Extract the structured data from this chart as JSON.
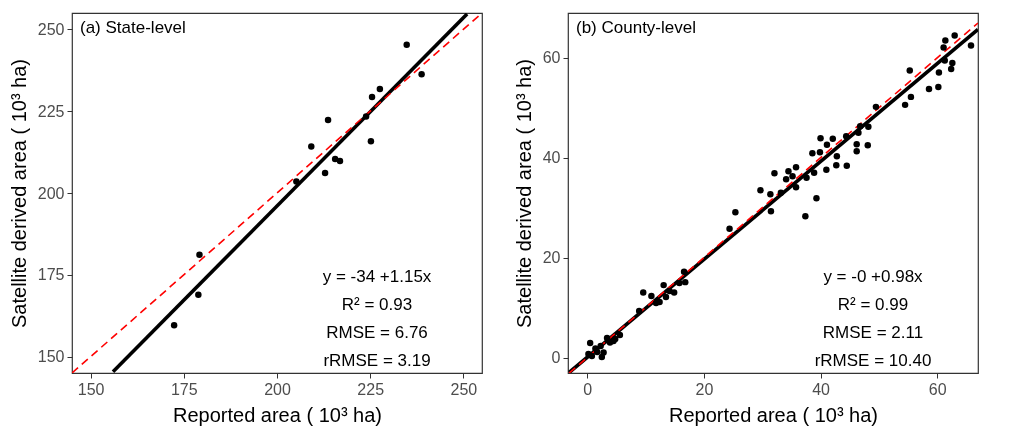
{
  "chart_data": [
    {
      "type": "scatter",
      "title": "(a) State-level",
      "xlabel": "Reported area ( 10³ ha)",
      "ylabel": "Satellite derived area ( 10³ ha)",
      "xlim": [
        145,
        255
      ],
      "ylim": [
        145,
        255
      ],
      "xticks": [
        150,
        175,
        200,
        225,
        250
      ],
      "yticks": [
        150,
        175,
        200,
        225,
        250
      ],
      "grid": false,
      "annotations": [
        "y = -34 +1.15x",
        "R² = 0.93",
        "RMSE = 6.76",
        "rRMSE = 3.19"
      ],
      "series": [
        {
          "marker": "circle",
          "color": "#000000",
          "x": [
            234.8,
            238.8,
            227.6,
            225.5,
            223.9,
            213.7,
            209.2,
            225.2,
            215.6,
            216.9,
            212.9,
            205.2,
            179.2,
            178.9,
            172.4
          ],
          "values": [
            245.3,
            236.3,
            231.8,
            229.3,
            223.4,
            222.3,
            214.2,
            215.8,
            210.4,
            209.8,
            206.1,
            203.5,
            181.1,
            168.9,
            159.6
          ]
        },
        {
          "type": "line",
          "color": "#000000",
          "line_style": "solid",
          "x": [
            156,
            251
          ],
          "values": [
            145.4,
            254.7
          ]
        },
        {
          "type": "line",
          "color": "#ff0000",
          "line_style": "dashed",
          "x": [
            145,
            255
          ],
          "values": [
            145,
            255
          ]
        }
      ]
    },
    {
      "type": "scatter",
      "title": "(b) County-level",
      "xlabel": "Reported area ( 10³ ha)",
      "ylabel": "Satellite derived area ( 10³ ha)",
      "xlim": [
        -3.3,
        67
      ],
      "ylim": [
        -3.1,
        69
      ],
      "xticks": [
        0,
        20,
        40,
        60
      ],
      "yticks": [
        0,
        20,
        40,
        60
      ],
      "grid": false,
      "annotations": [
        "y = -0 +0.98x",
        "R² = 0.99",
        "RMSE = 2.11",
        "rRMSE = 10.40"
      ],
      "series": [
        {
          "marker": "circle",
          "color": "#000000",
          "x": [
            61.4,
            63.0,
            61.1,
            65.8,
            62.6,
            62.4,
            60.3,
            61.3,
            55.3,
            55.5,
            54.5,
            58.6,
            60.2,
            49.5,
            48.2,
            46.8,
            46.5,
            46.2,
            46.2,
            48.1,
            44.4,
            42.1,
            40.0,
            41.1,
            42.8,
            42.7,
            44.5,
            41.0,
            38.6,
            39.9,
            38.9,
            39.3,
            37.4,
            37.6,
            35.8,
            34.5,
            32.1,
            34.1,
            35.8,
            35.2,
            29.7,
            31.4,
            33.2,
            31.5,
            25.4,
            24.4,
            16.6,
            16.8,
            15.8,
            14.9,
            13.1,
            13.5,
            12.4,
            11.0,
            9.6,
            8.9,
            11.8,
            14.1,
            5.6,
            4.8,
            3.4,
            3.9,
            2.3,
            0.5,
            1.7,
            0.8,
            2.5,
            0.2,
            1.4,
            2.8,
            4.5
          ],
          "values": [
            63.5,
            64.5,
            62.1,
            62.5,
            59.0,
            57.8,
            57.1,
            59.5,
            57.5,
            52.2,
            50.6,
            53.8,
            54.2,
            50.2,
            46.2,
            46.3,
            45.0,
            42.7,
            41.3,
            42.5,
            44.3,
            43.8,
            43.9,
            42.6,
            40.3,
            38.5,
            38.4,
            37.6,
            40.9,
            41.1,
            37.0,
            31.9,
            28.3,
            36.0,
            38.1,
            37.3,
            36.9,
            35.7,
            34.1,
            36.3,
            33.5,
            32.7,
            33.0,
            29.3,
            29.1,
            25.8,
            17.2,
            15.1,
            14.9,
            13.0,
            14.5,
            12.1,
            11.1,
            12.3,
            13.0,
            9.3,
            10.9,
            13.3,
            4.5,
            3.7,
            3.9,
            3.0,
            2.3,
            2.9,
            1.1,
            0.3,
            0.1,
            0.7,
            1.8,
            1.0,
            3.3
          ]
        },
        {
          "type": "line",
          "color": "#000000",
          "line_style": "solid",
          "x": [
            -3.1,
            67
          ],
          "values": [
            -3.0,
            65.7
          ]
        },
        {
          "type": "line",
          "color": "#ff0000",
          "line_style": "dashed",
          "x": [
            -3.1,
            67
          ],
          "values": [
            -3.1,
            67
          ]
        }
      ]
    }
  ]
}
